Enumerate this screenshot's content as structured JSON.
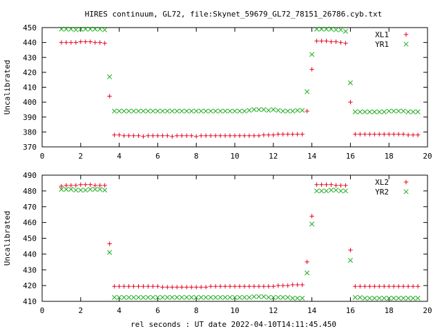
{
  "title": "HIRES continuum, GL72, file:Skynet_59679_GL72_78151_26786.cyb.txt",
  "xlabel": "rel seconds : UT date 2022-04-10T14:11:45.450",
  "colors": {
    "red": "#e8001e",
    "green": "#1aab1a",
    "frame": "#000000"
  },
  "chart_data": [
    {
      "type": "scatter",
      "ylabel": "Uncalibrated",
      "xlim": [
        0,
        20
      ],
      "ylim": [
        370,
        450
      ],
      "xticks": [
        0,
        2,
        4,
        6,
        8,
        10,
        12,
        14,
        16,
        18,
        20
      ],
      "yticks": [
        370,
        380,
        390,
        400,
        410,
        420,
        430,
        440,
        450
      ],
      "legend_position": "top-right",
      "x": [
        1.0,
        1.25,
        1.5,
        1.75,
        2.0,
        2.25,
        2.5,
        2.75,
        3.0,
        3.25,
        3.5,
        3.75,
        4.0,
        4.25,
        4.5,
        4.75,
        5.0,
        5.25,
        5.5,
        5.75,
        6.0,
        6.25,
        6.5,
        6.75,
        7.0,
        7.25,
        7.5,
        7.75,
        8.0,
        8.25,
        8.5,
        8.75,
        9.0,
        9.25,
        9.5,
        9.75,
        10.0,
        10.25,
        10.5,
        10.75,
        11.0,
        11.25,
        11.5,
        11.75,
        12.0,
        12.25,
        12.5,
        12.75,
        13.0,
        13.25,
        13.5,
        13.75,
        14.0,
        14.25,
        14.5,
        14.75,
        15.0,
        15.25,
        15.5,
        15.75,
        16.0,
        16.25,
        16.5,
        16.75,
        17.0,
        17.25,
        17.5,
        17.75,
        18.0,
        18.25,
        18.5,
        18.75,
        19.0,
        19.25,
        19.5
      ],
      "series": [
        {
          "name": "XL1",
          "marker": "plus",
          "color": "#e8001e",
          "values": [
            440,
            440,
            440,
            440,
            440.5,
            440.5,
            440.5,
            440,
            440,
            439.5,
            404,
            378,
            378,
            377.5,
            377.5,
            377.5,
            377.5,
            377,
            377.5,
            377.5,
            377.5,
            377.5,
            377.5,
            377,
            377.5,
            377.5,
            377.5,
            377.5,
            377,
            377.5,
            377.5,
            377.5,
            377.5,
            377.5,
            377.5,
            377.5,
            377.5,
            377.5,
            377.5,
            377.5,
            377.5,
            377.5,
            378,
            378,
            378,
            378.5,
            378.5,
            378.5,
            378.5,
            378.5,
            378.5,
            394,
            422,
            441,
            441,
            441,
            440.5,
            440.5,
            440,
            439.5,
            400,
            378.5,
            378.5,
            378.5,
            378.5,
            378.5,
            378.5,
            378.5,
            378.5,
            378.5,
            378.5,
            378.5,
            378,
            378,
            378
          ]
        },
        {
          "name": "YR1",
          "marker": "cross",
          "color": "#1aab1a",
          "values": [
            449,
            449,
            449,
            448.5,
            449,
            449,
            449,
            449,
            449,
            448.5,
            417,
            394,
            394,
            394,
            394,
            394,
            394,
            394,
            394,
            394,
            394,
            394,
            394,
            394,
            394,
            394,
            394,
            394,
            394,
            394,
            394,
            394,
            394,
            394,
            394,
            394,
            394,
            394,
            394,
            394.5,
            395,
            395,
            395,
            394.5,
            395,
            394.5,
            394,
            394,
            394,
            394.5,
            394.5,
            407,
            432,
            449,
            449,
            449,
            449,
            448.5,
            448.5,
            447.5,
            413,
            393.5,
            393.5,
            393.5,
            393.5,
            393.5,
            393.5,
            393.5,
            394,
            394,
            394,
            394,
            393.5,
            393.5,
            393.5
          ]
        }
      ]
    },
    {
      "type": "scatter",
      "ylabel": "Uncalibrated",
      "xlim": [
        0,
        20
      ],
      "ylim": [
        410,
        490
      ],
      "xticks": [
        0,
        2,
        4,
        6,
        8,
        10,
        12,
        14,
        16,
        18,
        20
      ],
      "yticks": [
        410,
        420,
        430,
        440,
        450,
        460,
        470,
        480,
        490
      ],
      "legend_position": "top-right",
      "x": [
        1.0,
        1.25,
        1.5,
        1.75,
        2.0,
        2.25,
        2.5,
        2.75,
        3.0,
        3.25,
        3.5,
        3.75,
        4.0,
        4.25,
        4.5,
        4.75,
        5.0,
        5.25,
        5.5,
        5.75,
        6.0,
        6.25,
        6.5,
        6.75,
        7.0,
        7.25,
        7.5,
        7.75,
        8.0,
        8.25,
        8.5,
        8.75,
        9.0,
        9.25,
        9.5,
        9.75,
        10.0,
        10.25,
        10.5,
        10.75,
        11.0,
        11.25,
        11.5,
        11.75,
        12.0,
        12.25,
        12.5,
        12.75,
        13.0,
        13.25,
        13.5,
        13.75,
        14.0,
        14.25,
        14.5,
        14.75,
        15.0,
        15.25,
        15.5,
        15.75,
        16.0,
        16.25,
        16.5,
        16.75,
        17.0,
        17.25,
        17.5,
        17.75,
        18.0,
        18.25,
        18.5,
        18.75,
        19.0,
        19.25,
        19.5
      ],
      "series": [
        {
          "name": "XL2",
          "marker": "plus",
          "color": "#e8001e",
          "values": [
            483,
            483.5,
            483.5,
            483.5,
            484,
            484,
            484,
            483.5,
            483.5,
            483.5,
            446.5,
            419.5,
            419.5,
            419.5,
            419.5,
            419.5,
            419.5,
            419.5,
            419.5,
            419.5,
            419.5,
            419,
            419,
            419,
            419,
            419,
            419,
            419,
            419,
            419,
            419,
            419.5,
            419.5,
            419.5,
            419.5,
            419.5,
            419.5,
            419.5,
            419.5,
            419.5,
            419.5,
            419.5,
            419.5,
            419.5,
            419.5,
            420,
            420,
            420,
            420.5,
            420.5,
            420.5,
            435,
            464,
            484,
            484,
            484,
            484,
            483.5,
            483.5,
            483.5,
            442.5,
            419.5,
            419.5,
            419.5,
            419.5,
            419.5,
            419.5,
            419.5,
            419.5,
            419.5,
            419.5,
            419.5,
            419.5,
            419.5,
            419.5
          ]
        },
        {
          "name": "YR2",
          "marker": "cross",
          "color": "#1aab1a",
          "values": [
            481,
            481,
            481,
            480.5,
            480.5,
            480.5,
            481,
            481,
            481,
            480.5,
            441,
            412.5,
            412.5,
            412.5,
            412.5,
            412.5,
            412.5,
            412.5,
            412.5,
            412.5,
            412.5,
            412.5,
            412.5,
            412.5,
            412.5,
            412.5,
            412.5,
            412.5,
            412.5,
            412.5,
            412.5,
            412.5,
            412.5,
            412.5,
            412.5,
            412.5,
            412.5,
            412.5,
            412.5,
            412.5,
            413,
            413,
            413,
            412.5,
            412.5,
            412.5,
            412.5,
            412.5,
            412,
            412,
            412,
            428,
            459,
            480,
            480,
            480,
            480.5,
            480.5,
            480,
            480,
            436,
            412.5,
            412.5,
            412,
            412,
            412,
            412,
            412,
            412,
            412,
            412,
            412,
            412,
            412,
            412
          ]
        }
      ]
    }
  ]
}
